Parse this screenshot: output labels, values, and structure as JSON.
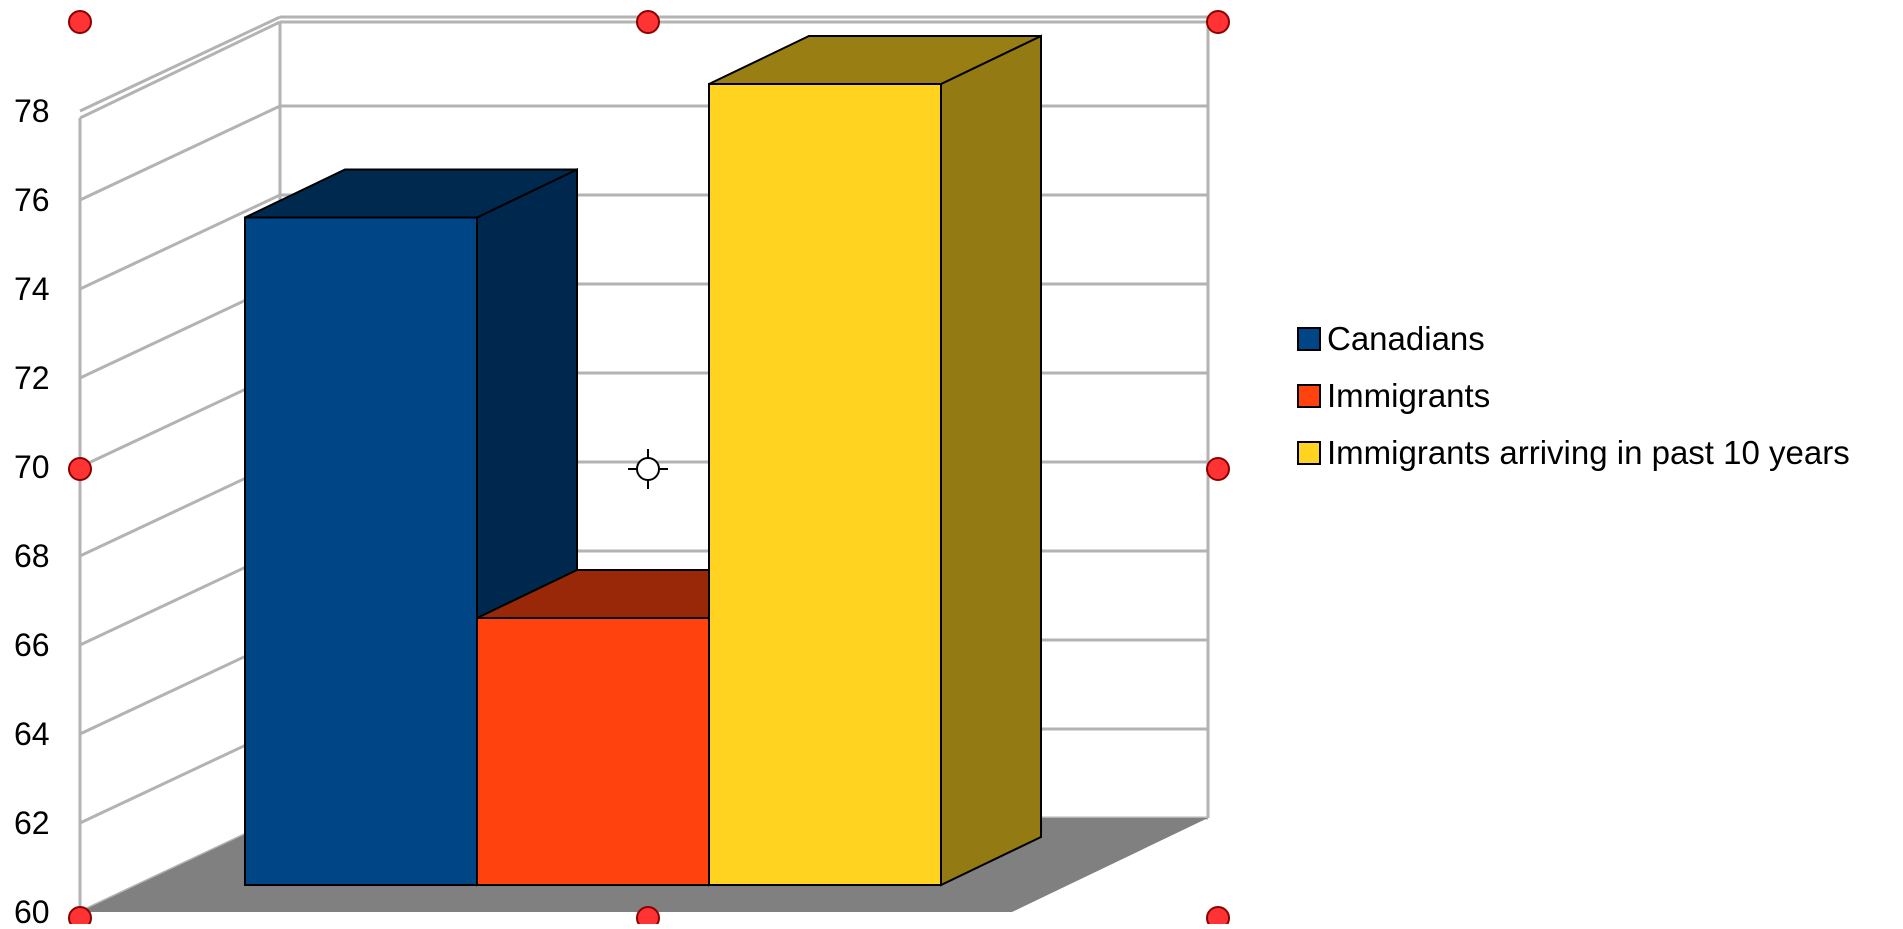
{
  "chart_data": {
    "type": "bar",
    "title": "",
    "xlabel": "",
    "ylabel": "",
    "ylim": [
      60,
      78
    ],
    "yticks": [
      "60",
      "62",
      "64",
      "66",
      "68",
      "70",
      "72",
      "74",
      "76",
      "78"
    ],
    "grid": true,
    "three_d": true,
    "legend_placement": "right",
    "series": [
      {
        "name": "Canadians",
        "value": 75,
        "color": "#004586"
      },
      {
        "name": "Immigrants",
        "value": 66,
        "color": "#ff420e"
      },
      {
        "name": "Immigrants arriving in past 10 years",
        "value": 78,
        "color": "#ffd320"
      }
    ]
  },
  "colors": {
    "floor": "#808080",
    "grid": "#b3b3b3",
    "handle": "#ff3333"
  },
  "icons": {
    "selection_handles": "circle-handle",
    "rotation_center": "crosshair-icon"
  }
}
